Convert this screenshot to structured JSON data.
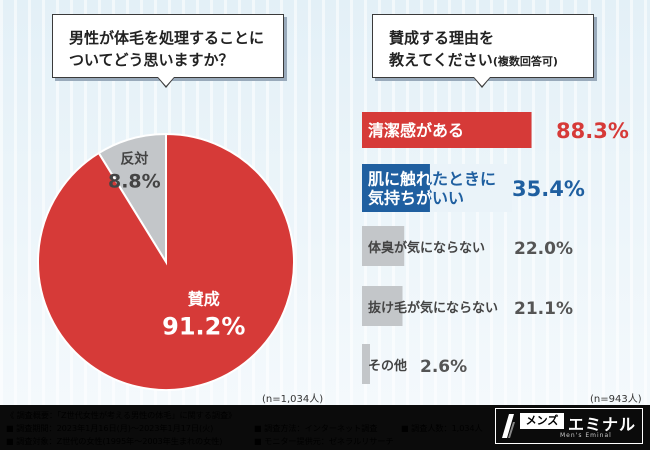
{
  "question_left": {
    "line1": "男性が体毛を処理することに",
    "line2": "ついてどう思いますか？"
  },
  "question_right": {
    "line1": "賛成する理由を",
    "line2": "教えてください",
    "note": "(複数回答可)"
  },
  "pie_n": "(n=1,034人)",
  "bars_n": "(n=943人)",
  "colors": {
    "red": "#d63a38",
    "blue": "#1f5fa0",
    "gray": "#c3c6c9",
    "dark_text": "#444"
  },
  "chart_data": [
    {
      "type": "pie",
      "slices": [
        {
          "label": "賛成",
          "value": 91.2,
          "display": "91.2%",
          "color": "#d63a38"
        },
        {
          "label": "反対",
          "value": 8.8,
          "display": "8.8%",
          "color": "#c3c6c9"
        }
      ]
    },
    {
      "type": "bar",
      "orientation": "horizontal",
      "xlim": [
        0,
        100
      ],
      "categories": [
        "清潔感がある",
        "肌に触れたときに気持ちがいい",
        "体臭が気にならない",
        "抜け毛が気にならない",
        "その他"
      ],
      "values": [
        88.3,
        35.4,
        22.0,
        21.1,
        2.6
      ],
      "display": [
        "88.3%",
        "35.4%",
        "22.0%",
        "21.1%",
        "2.6%"
      ]
    }
  ],
  "footer": {
    "overview": "《 調査概要：「Z世代女性が考える男性の体毛」に関する調査》",
    "period": "■ 調査期間：2023年1月16日(月)～2023年1月17日(火)",
    "target": "■ 調査対象：Z世代の女性(1995年～2003年生まれの女性)",
    "method": "■ 調査方法：インターネット調査",
    "monitor": "■ モニター提供元：ゼネラルリサーチ",
    "count": "■ 調査人数：1,034人",
    "logo_tag": "メンズ",
    "logo_name": "エミナル",
    "logo_sub": "Men's Eminal"
  }
}
